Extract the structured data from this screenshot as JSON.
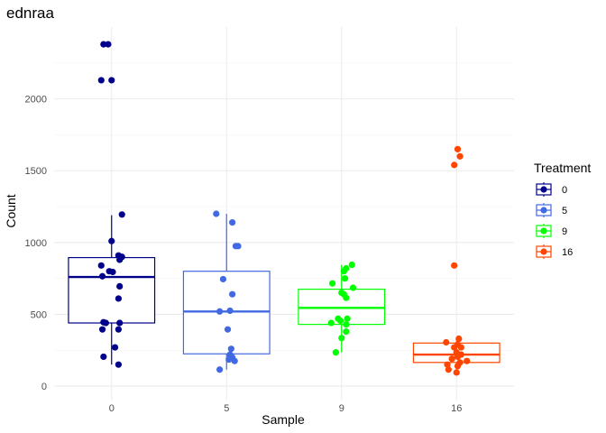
{
  "chart_data": {
    "type": "box",
    "title": "ednraa",
    "xlabel": "Sample",
    "ylabel": "Count",
    "ylim": [
      -100,
      2500
    ],
    "y_ticks": [
      0,
      500,
      1000,
      1500,
      2000
    ],
    "grid": true,
    "categories": [
      "0",
      "5",
      "9",
      "16"
    ],
    "legend": {
      "title": "Treatment",
      "position": "right",
      "entries": [
        "0",
        "5",
        "9",
        "16"
      ]
    },
    "series": [
      {
        "name": "0",
        "color": "#00008b",
        "box": {
          "min": 150,
          "q1": 440,
          "median": 760,
          "q3": 895,
          "max": 1190
        },
        "points": [
          {
            "x": -0.07,
            "y": 2380
          },
          {
            "x": -0.03,
            "y": 2380
          },
          {
            "x": -0.09,
            "y": 2130
          },
          {
            "x": 0.0,
            "y": 2130
          },
          {
            "x": 0.09,
            "y": 1195
          },
          {
            "x": 0.0,
            "y": 1010
          },
          {
            "x": 0.06,
            "y": 910
          },
          {
            "x": 0.09,
            "y": 900
          },
          {
            "x": 0.07,
            "y": 880
          },
          {
            "x": -0.09,
            "y": 840
          },
          {
            "x": -0.02,
            "y": 800
          },
          {
            "x": 0.01,
            "y": 795
          },
          {
            "x": -0.08,
            "y": 765
          },
          {
            "x": 0.07,
            "y": 695
          },
          {
            "x": 0.06,
            "y": 610
          },
          {
            "x": -0.07,
            "y": 445
          },
          {
            "x": -0.05,
            "y": 440
          },
          {
            "x": 0.07,
            "y": 440
          },
          {
            "x": -0.08,
            "y": 395
          },
          {
            "x": 0.06,
            "y": 395
          },
          {
            "x": 0.03,
            "y": 270
          },
          {
            "x": -0.07,
            "y": 205
          },
          {
            "x": 0.06,
            "y": 150
          }
        ]
      },
      {
        "name": "5",
        "color": "#4169e1",
        "box": {
          "min": 115,
          "q1": 225,
          "median": 520,
          "q3": 800,
          "max": 1200
        },
        "points": [
          {
            "x": -0.09,
            "y": 1200
          },
          {
            "x": 0.05,
            "y": 1140
          },
          {
            "x": 0.08,
            "y": 975
          },
          {
            "x": 0.1,
            "y": 975
          },
          {
            "x": -0.03,
            "y": 745
          },
          {
            "x": 0.05,
            "y": 640
          },
          {
            "x": -0.06,
            "y": 520
          },
          {
            "x": 0.03,
            "y": 525
          },
          {
            "x": 0.01,
            "y": 395
          },
          {
            "x": 0.04,
            "y": 260
          },
          {
            "x": 0.03,
            "y": 220
          },
          {
            "x": 0.05,
            "y": 200
          },
          {
            "x": 0.02,
            "y": 185
          },
          {
            "x": 0.07,
            "y": 175
          },
          {
            "x": -0.06,
            "y": 115
          }
        ]
      },
      {
        "name": "9",
        "color": "#00ff00",
        "box": {
          "min": 235,
          "q1": 430,
          "median": 545,
          "q3": 675,
          "max": 845
        },
        "points": [
          {
            "x": 0.09,
            "y": 845
          },
          {
            "x": 0.04,
            "y": 820
          },
          {
            "x": 0.02,
            "y": 800
          },
          {
            "x": 0.03,
            "y": 750
          },
          {
            "x": -0.08,
            "y": 715
          },
          {
            "x": 0.1,
            "y": 685
          },
          {
            "x": 0.0,
            "y": 650
          },
          {
            "x": 0.02,
            "y": 640
          },
          {
            "x": 0.04,
            "y": 615
          },
          {
            "x": -0.03,
            "y": 470
          },
          {
            "x": 0.05,
            "y": 470
          },
          {
            "x": -0.01,
            "y": 455
          },
          {
            "x": -0.09,
            "y": 440
          },
          {
            "x": 0.04,
            "y": 430
          },
          {
            "x": 0.04,
            "y": 380
          },
          {
            "x": 0.0,
            "y": 335
          },
          {
            "x": -0.05,
            "y": 235
          }
        ]
      },
      {
        "name": "16",
        "color": "#ff4500",
        "box": {
          "min": 115,
          "q1": 165,
          "median": 220,
          "q3": 300,
          "max": 330
        },
        "points": [
          {
            "x": 0.01,
            "y": 1650
          },
          {
            "x": 0.03,
            "y": 1600
          },
          {
            "x": -0.02,
            "y": 1540
          },
          {
            "x": -0.02,
            "y": 840
          },
          {
            "x": 0.02,
            "y": 330
          },
          {
            "x": -0.09,
            "y": 305
          },
          {
            "x": 0.01,
            "y": 290
          },
          {
            "x": -0.02,
            "y": 270
          },
          {
            "x": 0.04,
            "y": 270
          },
          {
            "x": 0.0,
            "y": 235
          },
          {
            "x": 0.04,
            "y": 220
          },
          {
            "x": 0.01,
            "y": 205
          },
          {
            "x": -0.04,
            "y": 190
          },
          {
            "x": 0.09,
            "y": 175
          },
          {
            "x": 0.03,
            "y": 165
          },
          {
            "x": -0.08,
            "y": 150
          },
          {
            "x": 0.01,
            "y": 140
          },
          {
            "x": -0.07,
            "y": 115
          },
          {
            "x": 0.0,
            "y": 95
          }
        ]
      }
    ]
  }
}
